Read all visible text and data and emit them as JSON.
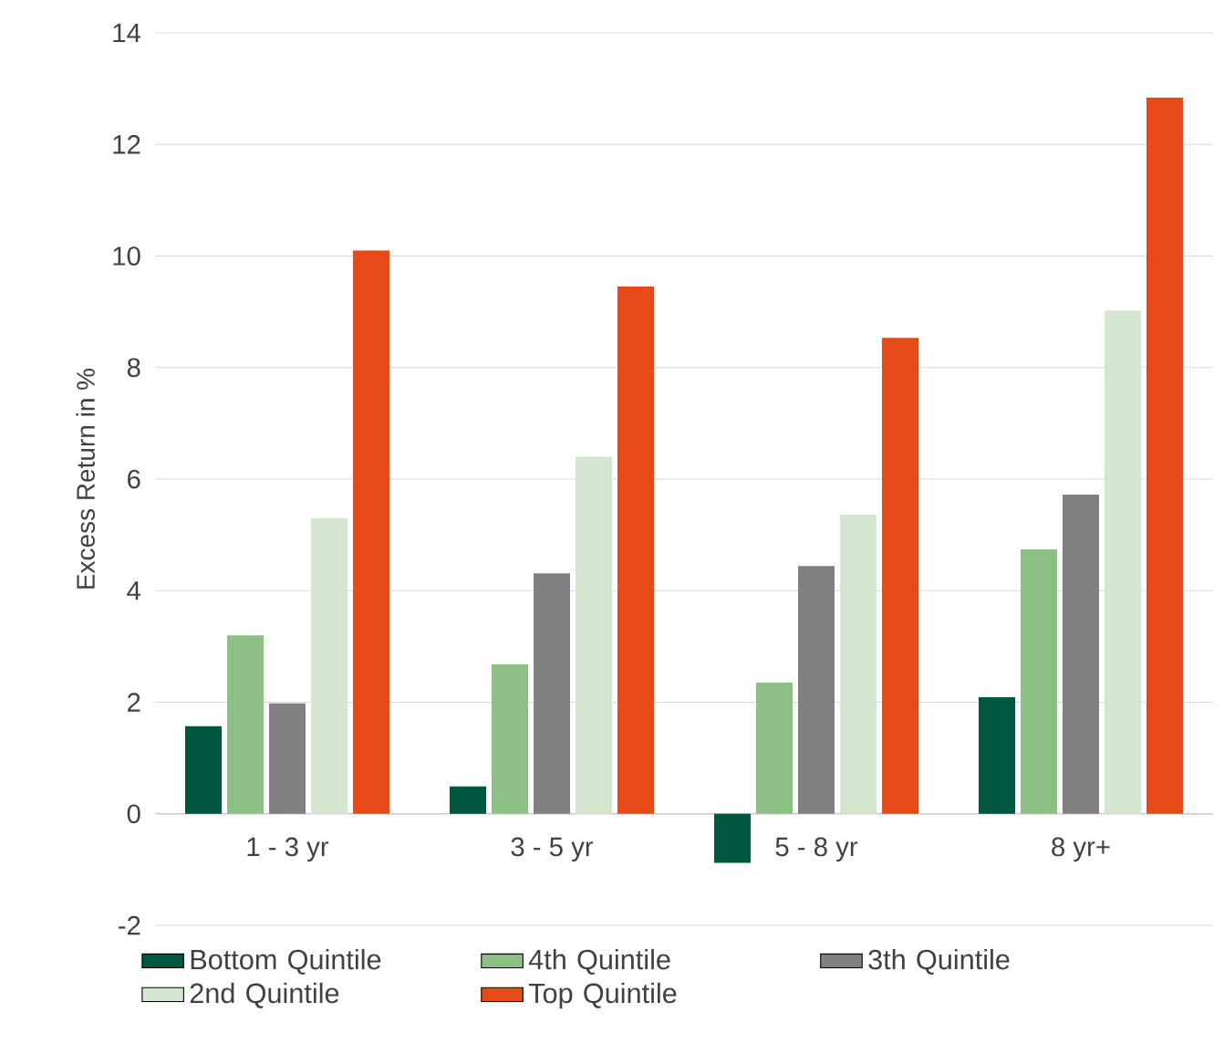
{
  "chart_data": {
    "type": "bar",
    "ylabel": "Excess Return in %",
    "categories": [
      "1 - 3 yr",
      "3 - 5 yr",
      "5 - 8 yr",
      "8 yr+"
    ],
    "series": [
      {
        "name": "Bottom Quintile",
        "color": "#00573f",
        "values": [
          1.57,
          0.49,
          -0.88,
          2.09
        ]
      },
      {
        "name": "4th Quintile",
        "color": "#8cc084",
        "values": [
          3.2,
          2.68,
          2.35,
          4.74
        ]
      },
      {
        "name": "3th Quintile",
        "color": "#808080",
        "values": [
          1.98,
          4.31,
          4.44,
          5.72
        ]
      },
      {
        "name": "2nd Quintile",
        "color": "#d5e6d0",
        "values": [
          5.3,
          6.4,
          5.36,
          9.02
        ]
      },
      {
        "name": "Top Quintile",
        "color": "#e64a19",
        "values": [
          10.1,
          9.45,
          8.53,
          12.84
        ]
      }
    ],
    "ylim": [
      -2,
      14
    ],
    "yticks": [
      -2,
      0,
      2,
      4,
      6,
      8,
      10,
      12,
      14
    ],
    "grid": "y",
    "legend": "bottom"
  }
}
